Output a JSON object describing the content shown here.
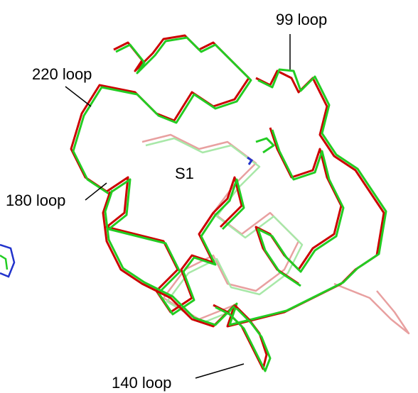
{
  "labels": [
    {
      "text": "99 loop"
    },
    {
      "text": "220 loop"
    },
    {
      "text": "S1"
    },
    {
      "text": "180 loop"
    },
    {
      "text": "140 loop"
    }
  ]
}
